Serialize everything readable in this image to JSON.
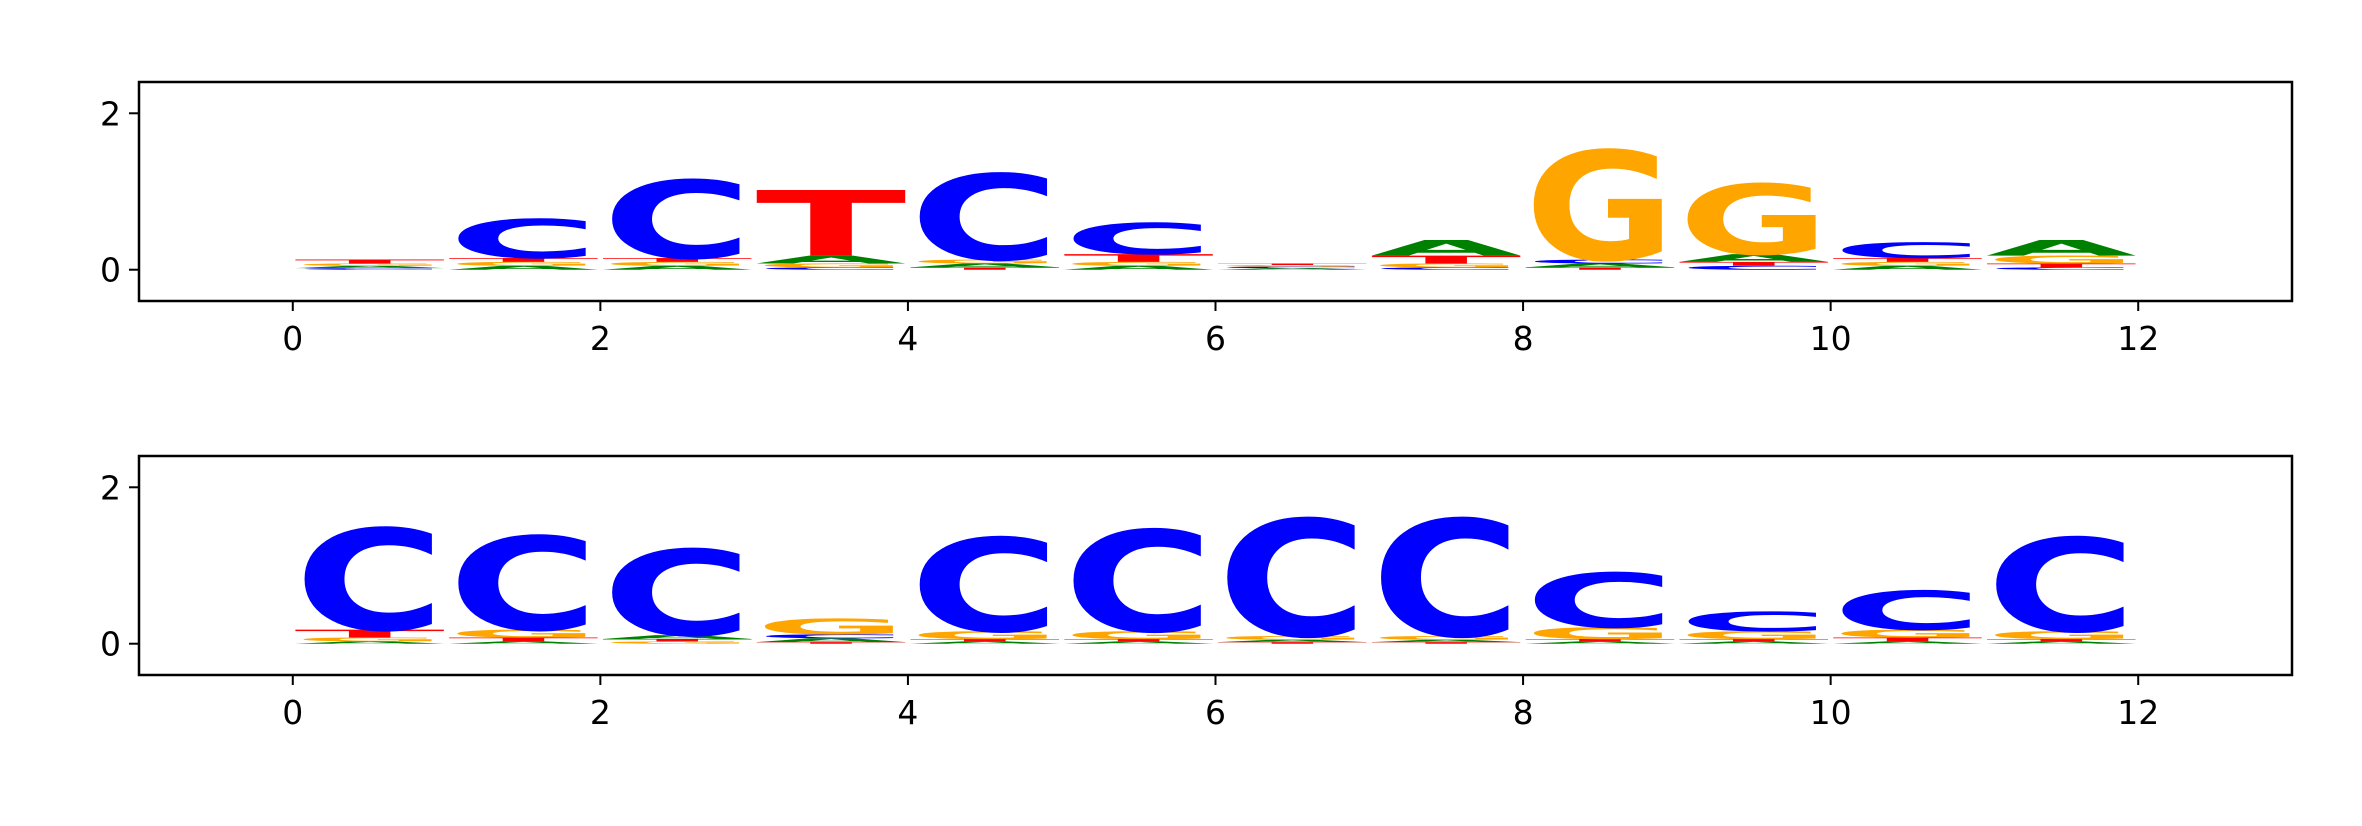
{
  "chart_data": [
    {
      "type": "logo",
      "x": [
        0,
        1,
        2,
        3,
        4,
        5,
        6,
        7,
        8,
        9,
        10,
        11
      ],
      "series": [
        {
          "name": "A",
          "color": "#008000",
          "values": [
            0.03,
            0.05,
            0.05,
            0.1,
            0.05,
            0.05,
            0.02,
            0.2,
            0.05,
            0.1,
            0.05,
            0.2
          ]
        },
        {
          "name": "C",
          "color": "#0000ff",
          "values": [
            0.02,
            0.5,
            1.0,
            0.03,
            1.1,
            0.4,
            0.02,
            0.03,
            0.05,
            0.05,
            0.2,
            0.03
          ]
        },
        {
          "name": "G",
          "color": "#ffa500",
          "values": [
            0.03,
            0.05,
            0.05,
            0.05,
            0.05,
            0.05,
            0.02,
            0.05,
            1.4,
            0.9,
            0.05,
            0.1
          ]
        },
        {
          "name": "T",
          "color": "#ff0000",
          "values": [
            0.05,
            0.05,
            0.05,
            0.84,
            0.03,
            0.1,
            0.02,
            0.1,
            0.03,
            0.05,
            0.05,
            0.05
          ]
        }
      ],
      "xlim": [
        -1,
        13
      ],
      "xticks": [
        0,
        2,
        4,
        6,
        8,
        10,
        12
      ],
      "ylim": [
        -0.4,
        2.4
      ],
      "yticks": [
        0,
        2
      ]
    },
    {
      "type": "logo",
      "x": [
        0,
        1,
        2,
        3,
        4,
        5,
        6,
        7,
        8,
        9,
        10,
        11
      ],
      "series": [
        {
          "name": "A",
          "color": "#008000",
          "values": [
            0.03,
            0.03,
            0.05,
            0.05,
            0.03,
            0.03,
            0.03,
            0.03,
            0.03,
            0.03,
            0.03,
            0.03
          ]
        },
        {
          "name": "C",
          "color": "#0000ff",
          "values": [
            1.3,
            1.2,
            1.1,
            0.05,
            1.2,
            1.3,
            1.5,
            1.5,
            0.7,
            0.25,
            0.5,
            1.2
          ]
        },
        {
          "name": "G",
          "color": "#ffa500",
          "values": [
            0.05,
            0.1,
            0.03,
            0.2,
            0.1,
            0.1,
            0.05,
            0.05,
            0.15,
            0.1,
            0.1,
            0.1
          ]
        },
        {
          "name": "T",
          "color": "#ff0000",
          "values": [
            0.1,
            0.05,
            0.03,
            0.02,
            0.03,
            0.03,
            0.02,
            0.02,
            0.03,
            0.03,
            0.05,
            0.03
          ]
        }
      ],
      "xlim": [
        -1,
        13
      ],
      "xticks": [
        0,
        2,
        4,
        6,
        8,
        10,
        12
      ],
      "ylim": [
        -0.4,
        2.4
      ],
      "yticks": [
        0,
        2
      ]
    }
  ]
}
